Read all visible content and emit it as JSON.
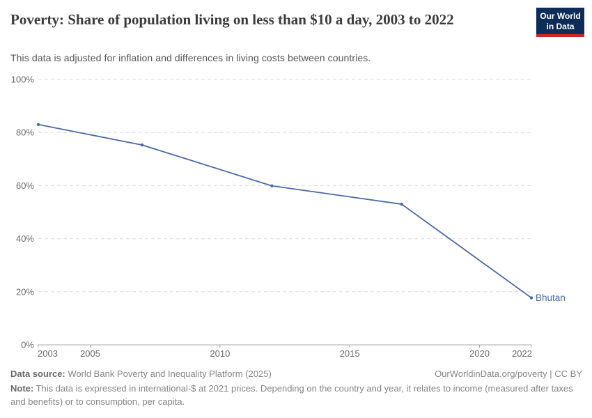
{
  "branding": {
    "logo_line1": "Our World",
    "logo_line2": "in Data",
    "logo_bg_color": "#0d2c57",
    "logo_accent_color": "#c9291e"
  },
  "chart_data": {
    "type": "line",
    "title": "Poverty: Share of population living on less than $10 a day, 2003 to 2022",
    "subtitle": "This data is adjusted for inflation and differences in living costs between countries.",
    "series": [
      {
        "name": "Bhutan",
        "color": "#4a68a5",
        "x": [
          2003,
          2007,
          2012,
          2017,
          2022
        ],
        "values": [
          83,
          75.3,
          59.9,
          53,
          17.7
        ]
      }
    ],
    "xlim": [
      2003,
      2022
    ],
    "ylim": [
      0,
      100
    ],
    "xticks": [
      2003,
      2005,
      2010,
      2015,
      2020,
      2022
    ],
    "yticks": [
      0,
      20,
      40,
      60,
      80,
      100
    ],
    "ytick_suffix": "%",
    "grid": "horizontal-dashed",
    "legend_position": "end-of-line-label",
    "colors": {
      "gridline": "#dcdcdc",
      "axis": "#a8a8a8",
      "tick_label": "#6b6b6b"
    }
  },
  "footer": {
    "source_label": "Data source:",
    "source_text": " World Bank Poverty and Inequality Platform (2025)",
    "attribution": "OurWorldinData.org/poverty | CC BY",
    "note_label": "Note:",
    "note_text": " This data is expressed in international-$ at 2021 prices. Depending on the country and year, it relates to income (measured after taxes and benefits) or to consumption, per capita."
  }
}
